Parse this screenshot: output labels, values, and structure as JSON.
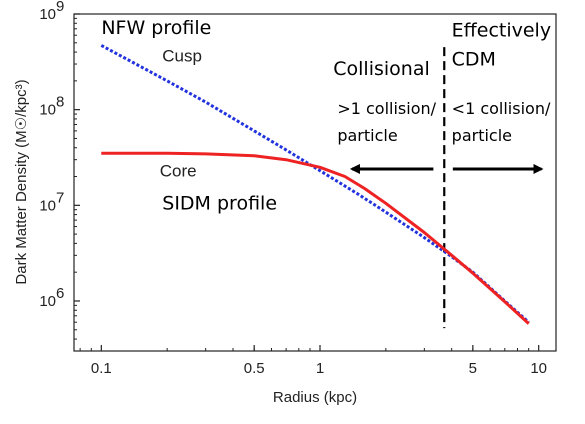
{
  "chart_data": {
    "type": "line",
    "xlabel": "Radius (kpc)",
    "ylabel": "Dark Matter Density (M☉/kpc³)",
    "x_scale": "log",
    "y_scale": "log",
    "xlim": [
      0.075,
      12
    ],
    "ylim": [
      300000,
      1000000000
    ],
    "x_ticks": [
      {
        "value": 0.1,
        "label": "0.1"
      },
      {
        "value": 0.5,
        "label": "0.5"
      },
      {
        "value": 1,
        "label": "1"
      },
      {
        "value": 5,
        "label": "5"
      },
      {
        "value": 10,
        "label": "10"
      }
    ],
    "y_ticks": [
      {
        "value": 1000000,
        "base": "10",
        "exp": "6"
      },
      {
        "value": 10000000,
        "base": "10",
        "exp": "7"
      },
      {
        "value": 100000000,
        "base": "10",
        "exp": "8"
      },
      {
        "value": 1000000000,
        "base": "10",
        "exp": "9"
      }
    ],
    "grid": false,
    "series": [
      {
        "label": "NFW profile",
        "color": "#2233dd",
        "style": "dotted",
        "x": [
          0.1,
          0.2,
          0.3,
          0.5,
          0.7,
          1.0,
          1.5,
          2.0,
          3.0,
          4.0,
          5.0,
          7.0,
          9.0
        ],
        "y": [
          470000000,
          200000000,
          120000000,
          60000000,
          38000000,
          23000000,
          13000000,
          8500000,
          4600000,
          2900000,
          2000000,
          1000000,
          600000
        ]
      },
      {
        "label": "SIDM profile",
        "color": "#ee2222",
        "style": "solid",
        "x": [
          0.1,
          0.2,
          0.3,
          0.5,
          0.7,
          1.0,
          1.3,
          1.6,
          2.0,
          3.0,
          4.0,
          5.0,
          7.0,
          9.0
        ],
        "y": [
          35000000,
          35000000,
          34500000,
          33000000,
          30000000,
          25000000,
          20000000,
          15000000,
          10500000,
          5200000,
          3000000,
          1950000,
          980000,
          580000
        ]
      }
    ],
    "divider": {
      "x": 3.7,
      "ymin": 520000,
      "ymax": 450000000
    },
    "annotations": {
      "nfw": {
        "text": "NFW profile",
        "x": 0.1,
        "y": 620000000
      },
      "cusp": {
        "text": "Cusp",
        "x": 0.19,
        "y": 320000000
      },
      "collisional": {
        "text": "Collisional",
        "x": 1.15,
        "y": 230000000
      },
      "collisional_rate_1": {
        "text": ">1 collision/",
        "x": 1.2,
        "y": 90000000
      },
      "collisional_rate_2": {
        "text": "particle",
        "x": 1.2,
        "y": 47000000
      },
      "effectively": {
        "text": "Effectively",
        "x": 4.0,
        "y": 580000000
      },
      "cdm": {
        "text": "CDM",
        "x": 4.0,
        "y": 290000000
      },
      "cdm_rate_1": {
        "text": "<1 collision/",
        "x": 4.0,
        "y": 90000000
      },
      "cdm_rate_2": {
        "text": "particle",
        "x": 4.0,
        "y": 47000000
      },
      "core": {
        "text": "Core",
        "x": 0.185,
        "y": 20000000
      },
      "sidm": {
        "text": "SIDM profile",
        "x": 0.19,
        "y": 9000000
      }
    },
    "arrows": [
      {
        "name": "collisional-arrow",
        "from_x": 3.3,
        "to_x": 1.4,
        "y": 24000000
      },
      {
        "name": "cdm-arrow",
        "from_x": 4.05,
        "to_x": 10.3,
        "y": 24000000
      }
    ]
  }
}
